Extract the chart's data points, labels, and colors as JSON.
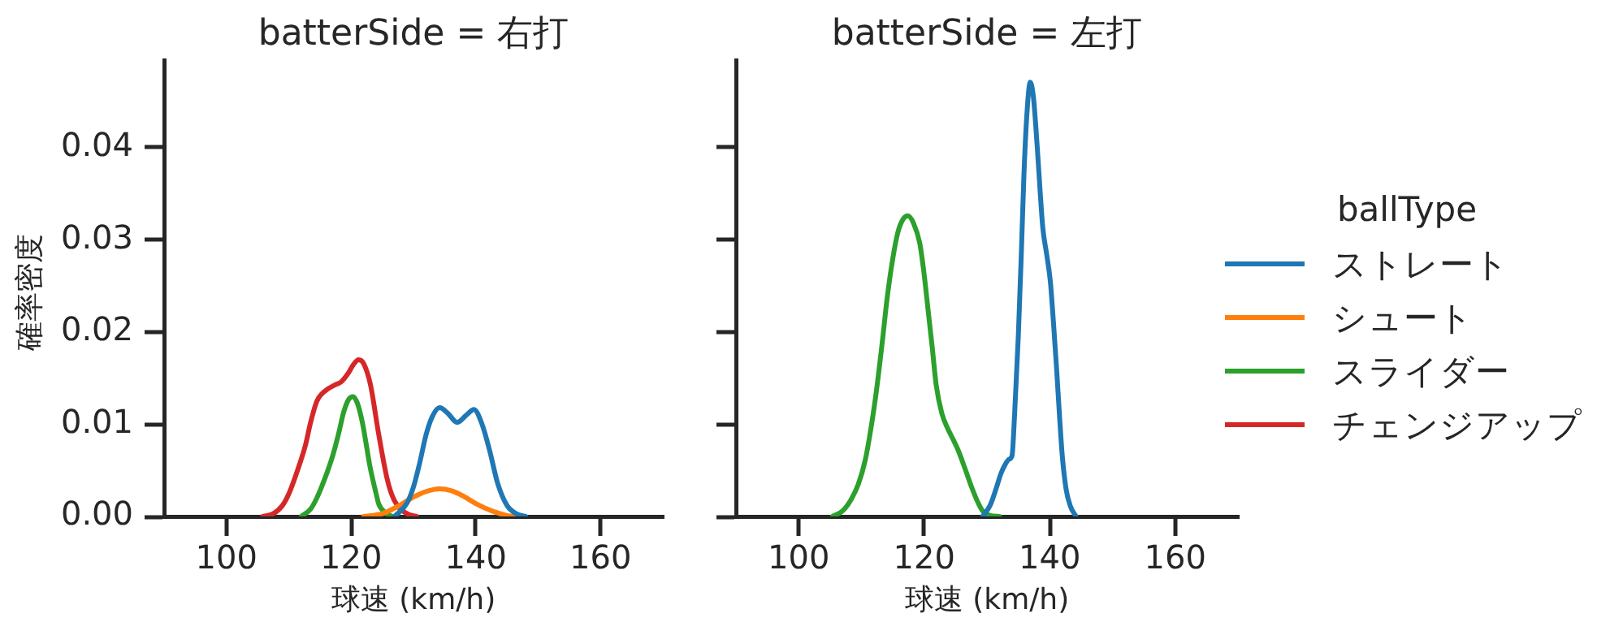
{
  "chart_data": [
    {
      "type": "line",
      "title": "batterSide = 右打",
      "xlabel": "球速 (km/h)",
      "ylabel": "確率密度",
      "legend": "right",
      "legend_title": "ballType",
      "xlim": [
        90,
        170
      ],
      "xticks": [
        100,
        120,
        140,
        160
      ],
      "ylim": [
        0,
        0.0495
      ],
      "yticks": [
        {
          "value": 0,
          "label": "0.00"
        },
        0.01,
        0.02,
        0.03,
        0.04
      ],
      "series": [
        {
          "name": "ストレート",
          "color": "#1f77b4",
          "x": [
            127,
            129,
            130,
            131,
            132,
            133,
            134.2,
            135.5,
            137,
            138.5,
            139.7,
            141,
            142.2,
            143.5,
            145,
            146.5,
            148
          ],
          "values": [
            0,
            0.0015,
            0.0032,
            0.0058,
            0.0088,
            0.0108,
            0.0118,
            0.0112,
            0.0102,
            0.011,
            0.0116,
            0.01,
            0.0072,
            0.0036,
            0.0012,
            0.0003,
            0
          ]
        },
        {
          "name": "シュート",
          "color": "#ff7f0e",
          "x": [
            122,
            125,
            127.5,
            130,
            132,
            134.2,
            136,
            138,
            140,
            141.5,
            143,
            145,
            146.5
          ],
          "values": [
            0,
            0.0003,
            0.0011,
            0.0021,
            0.0027,
            0.003,
            0.0028,
            0.0022,
            0.0014,
            0.0009,
            0.0005,
            0.0001,
            0
          ]
        },
        {
          "name": "スライダー",
          "color": "#2ca02c",
          "x": [
            112,
            113.5,
            114.5,
            116,
            117.1,
            118,
            118.8,
            119.6,
            120.3,
            121,
            121.8,
            122.5,
            123,
            124,
            124.4,
            125.5,
            126.6
          ],
          "values": [
            0,
            0.0008,
            0.002,
            0.0045,
            0.0067,
            0.009,
            0.0113,
            0.0127,
            0.013,
            0.0123,
            0.0102,
            0.0075,
            0.0055,
            0.0025,
            0.0014,
            0.0004,
            0
          ]
        },
        {
          "name": "チェンジアップ",
          "color": "#d62728",
          "x": [
            105.8,
            107.5,
            109,
            110.1,
            111.5,
            112.7,
            113.5,
            114.5,
            115.3,
            116.2,
            117.5,
            118.4,
            119.5,
            120.4,
            121.2,
            122,
            123.1,
            124.4,
            125.7,
            126.5,
            127.5,
            129,
            130.5
          ],
          "values": [
            0,
            0.0003,
            0.0012,
            0.0026,
            0.0052,
            0.0078,
            0.0102,
            0.0125,
            0.0133,
            0.0138,
            0.0143,
            0.0146,
            0.0155,
            0.0165,
            0.017,
            0.0166,
            0.0143,
            0.009,
            0.0043,
            0.0024,
            0.0011,
            0.0003,
            0
          ]
        }
      ]
    },
    {
      "type": "line",
      "title": "batterSide = 左打",
      "xlabel": "球速 (km/h)",
      "tick_labels": "x",
      "xlim": [
        90,
        170
      ],
      "xticks": [
        100,
        120,
        140,
        160
      ],
      "ylim": [
        0,
        0.0495
      ],
      "yticks": [
        0,
        0.01,
        0.02,
        0.03,
        0.04
      ],
      "series": [
        {
          "name": "ストレート",
          "color": "#1f77b4",
          "x": [
            129.3,
            130.5,
            131.5,
            132.2,
            132.8,
            133.5,
            134,
            134.4,
            135,
            135.5,
            135.9,
            136.4,
            136.9,
            137.4,
            138,
            138.5,
            138.9,
            139.5,
            140.1,
            140.6,
            141.1,
            141.6,
            142,
            142.6,
            143.3,
            144.2
          ],
          "values": [
            0,
            0.0012,
            0.0031,
            0.0046,
            0.0055,
            0.0062,
            0.0066,
            0.011,
            0.0196,
            0.029,
            0.0372,
            0.044,
            0.0471,
            0.0455,
            0.0402,
            0.035,
            0.0313,
            0.0285,
            0.0255,
            0.021,
            0.016,
            0.0105,
            0.0066,
            0.003,
            0.0011,
            0
          ]
        },
        {
          "name": "スライダー",
          "color": "#2ca02c",
          "x": [
            105.4,
            107,
            108.4,
            109.5,
            110.6,
            111.5,
            112.4,
            113.3,
            114.1,
            115,
            115.8,
            116.6,
            117.4,
            118.3,
            119.3,
            120,
            120.6,
            121.3,
            121.9,
            122.8,
            123.7,
            124.5,
            125.4,
            126.5,
            127.6,
            128.5,
            129.3,
            130.5,
            132
          ],
          "values": [
            0,
            0.0006,
            0.0019,
            0.0035,
            0.0061,
            0.0095,
            0.0137,
            0.0188,
            0.0237,
            0.028,
            0.0308,
            0.0322,
            0.0326,
            0.0318,
            0.0296,
            0.0262,
            0.0225,
            0.0182,
            0.0143,
            0.0112,
            0.0096,
            0.0085,
            0.0072,
            0.0052,
            0.0031,
            0.0016,
            0.0006,
            0.0001,
            0
          ]
        }
      ]
    }
  ]
}
